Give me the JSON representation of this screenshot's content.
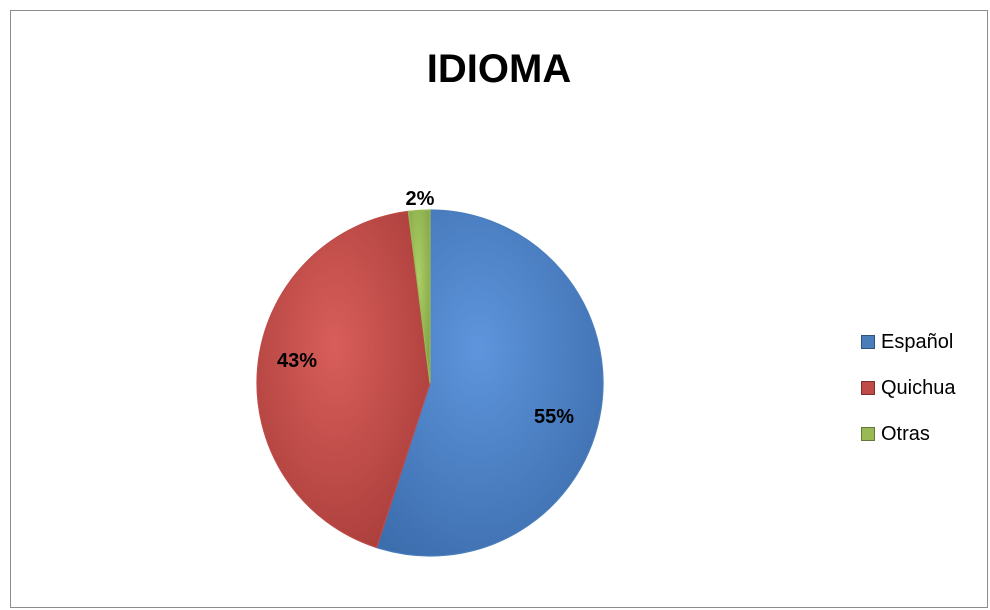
{
  "chart_data": {
    "type": "pie",
    "title": "IDIOMA",
    "categories": [
      "Español",
      "Quichua",
      "Otras"
    ],
    "values": [
      55,
      43,
      2
    ],
    "data_labels": [
      "55%",
      "43%",
      "2%"
    ],
    "colors": [
      "#4a7ebb",
      "#be4b48",
      "#98b954"
    ],
    "legend_position": "right"
  }
}
